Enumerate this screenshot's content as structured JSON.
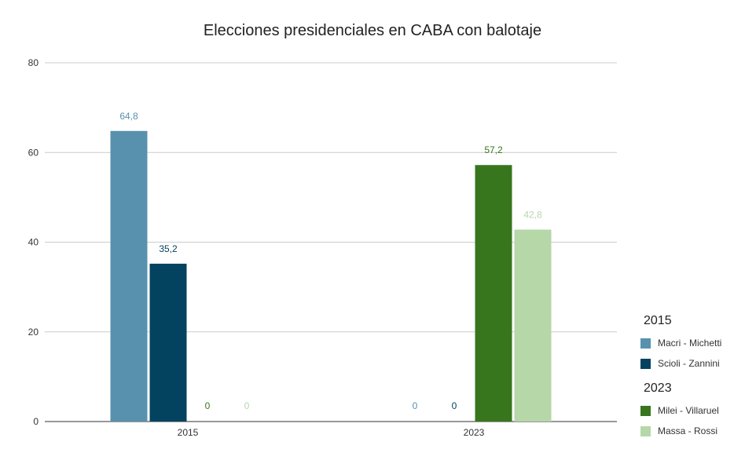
{
  "chart_data": {
    "type": "bar",
    "title": "Elecciones presidenciales en CABA con balotaje",
    "categories": [
      "2015",
      "2023"
    ],
    "ylim": [
      0,
      80
    ],
    "yticks": [
      0,
      20,
      40,
      60,
      80
    ],
    "grid": true,
    "legend_position": "right",
    "series": [
      {
        "name": "Macri - Michetti",
        "color": "#5891ae",
        "values": [
          64.8,
          0
        ],
        "labels": [
          "64,8",
          "0"
        ]
      },
      {
        "name": "Scioli - Zannini",
        "color": "#03435f",
        "values": [
          35.2,
          0
        ],
        "labels": [
          "35,2",
          "0"
        ]
      },
      {
        "name": "Milei - Villaruel",
        "color": "#38761d",
        "values": [
          0,
          57.2
        ],
        "labels": [
          "0",
          "57,2"
        ]
      },
      {
        "name": "Massa - Rossi",
        "color": "#b6d7a8",
        "values": [
          0,
          42.8
        ],
        "labels": [
          "0",
          "42,8"
        ]
      }
    ],
    "legend_groups": [
      {
        "title": "2015",
        "series": [
          0,
          1
        ]
      },
      {
        "title": "2023",
        "series": [
          2,
          3
        ]
      }
    ]
  }
}
